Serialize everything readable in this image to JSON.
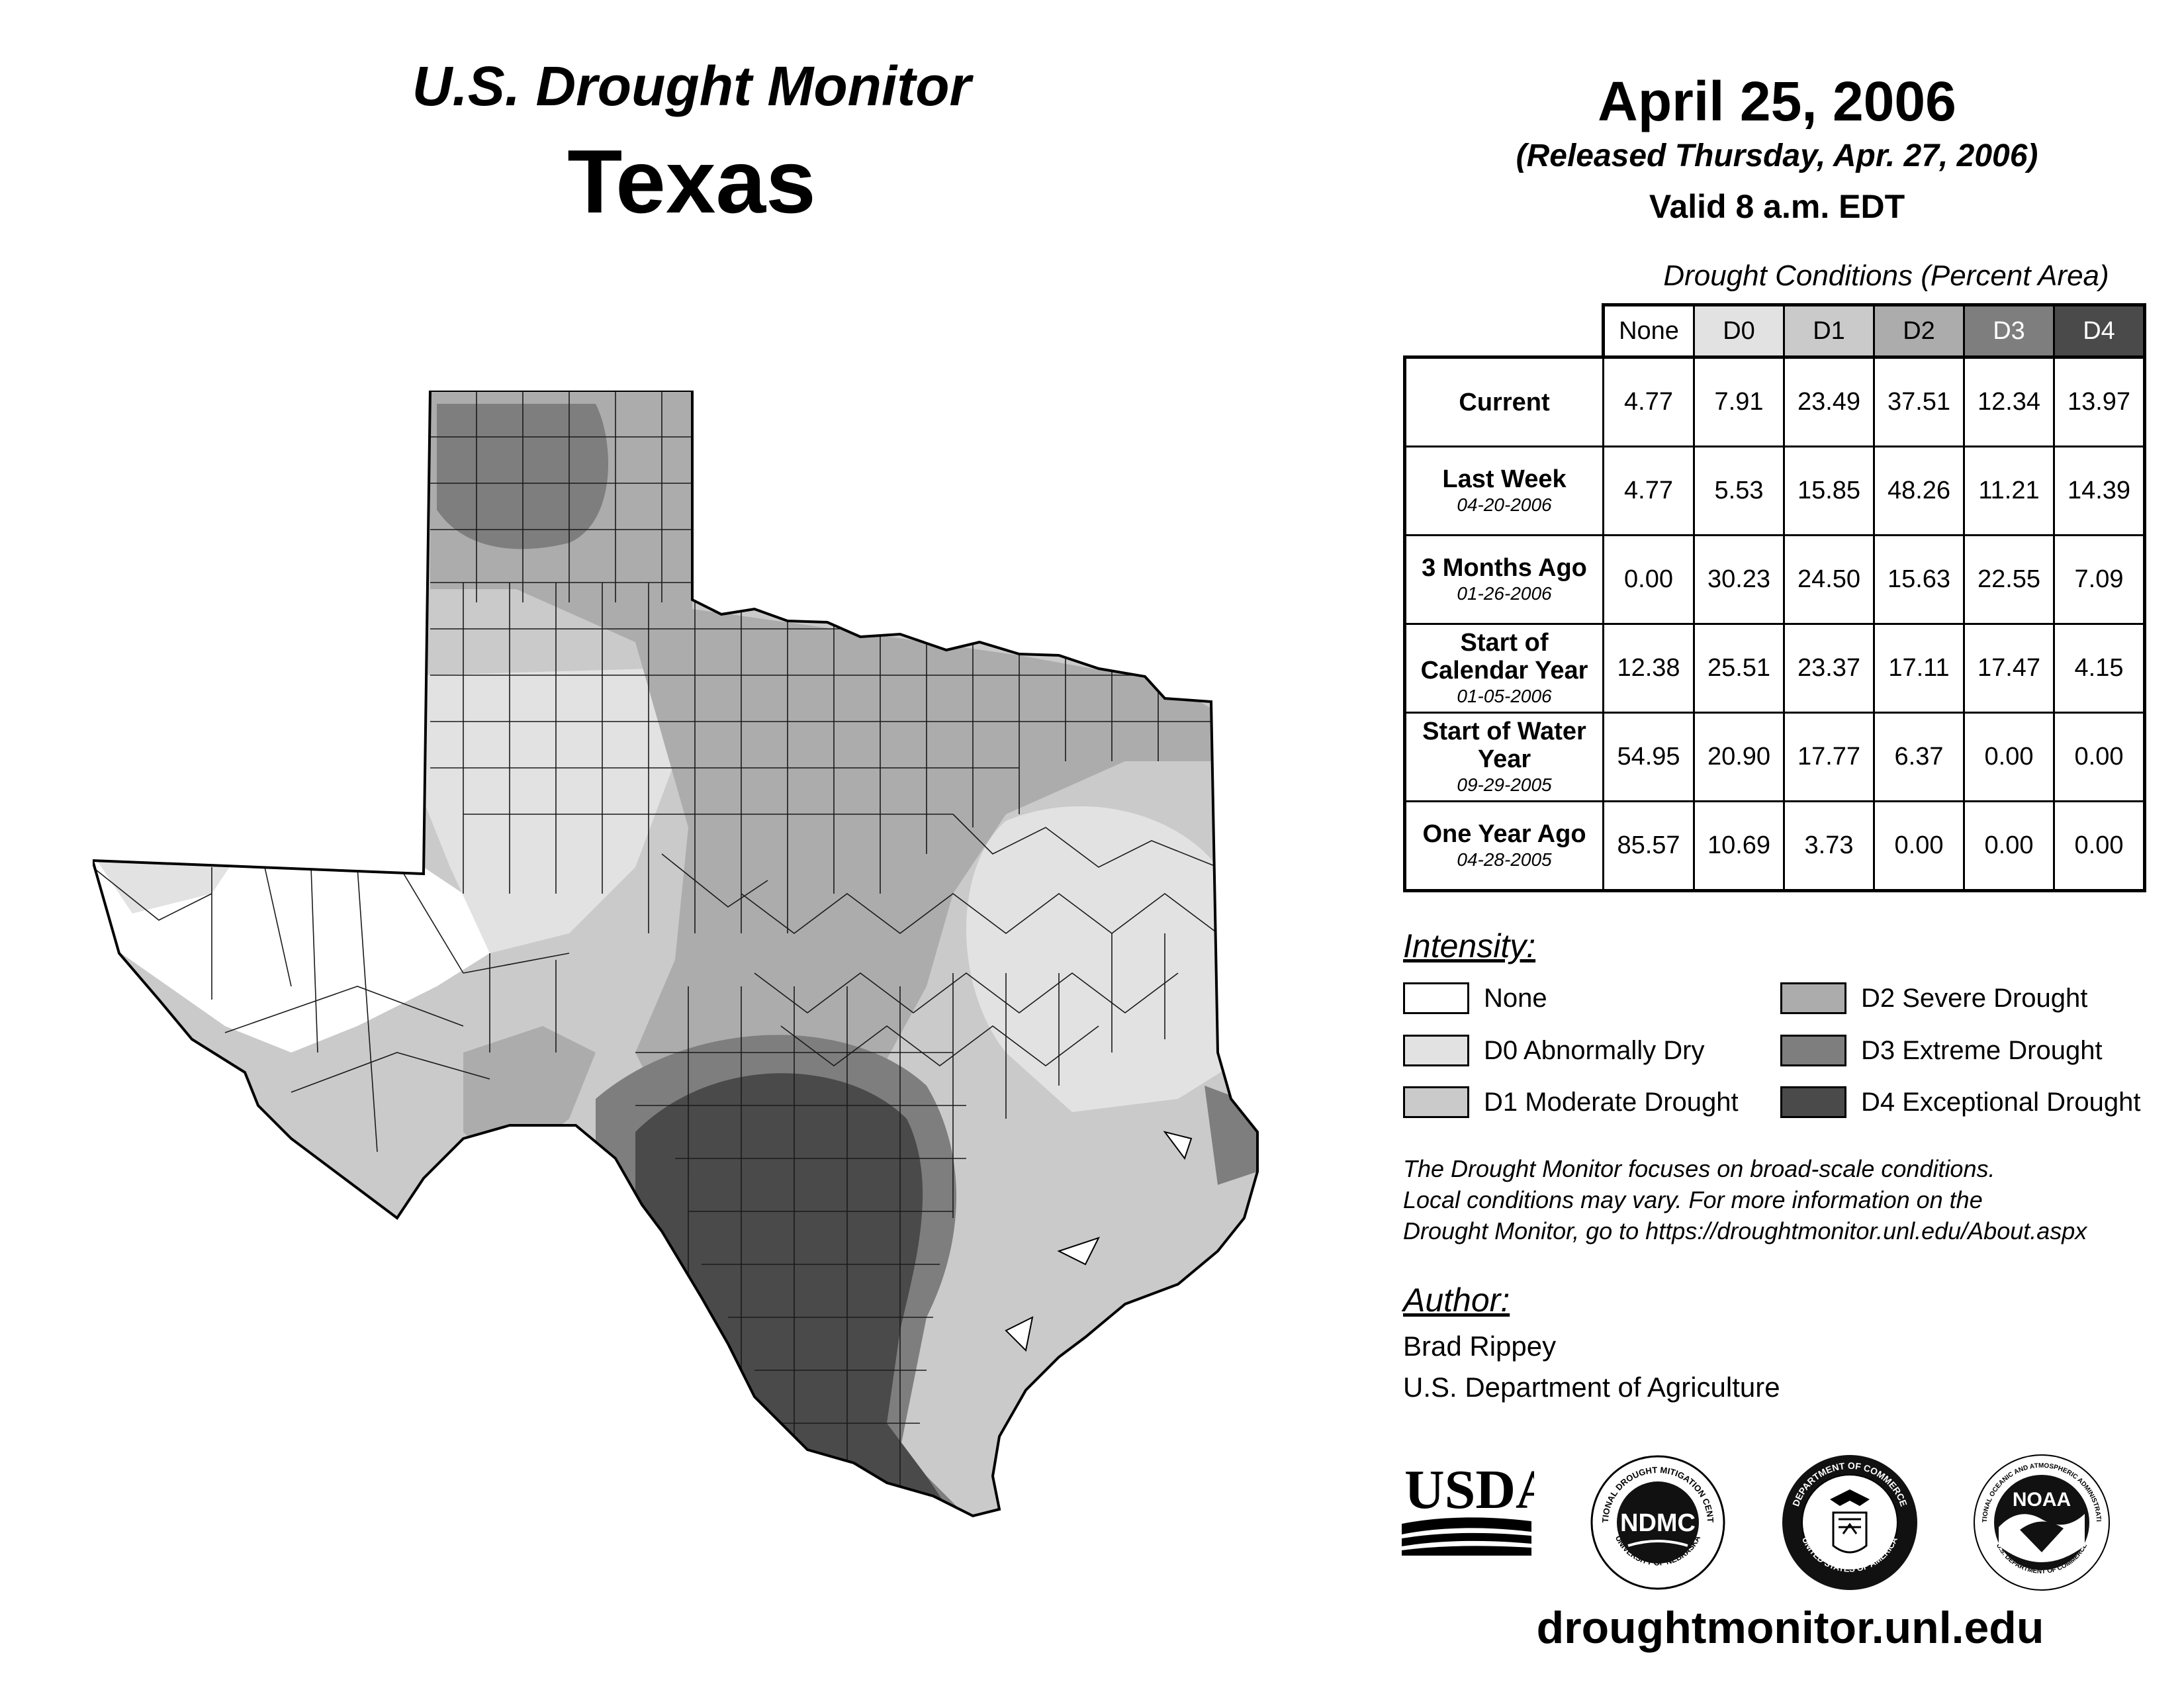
{
  "header": {
    "product": "U.S. Drought Monitor",
    "state": "Texas",
    "date": "April 25, 2006",
    "released": "(Released Thursday, Apr. 27, 2006)",
    "valid": "Valid 8 a.m. EDT"
  },
  "table": {
    "caption": "Drought Conditions (Percent Area)",
    "columns": [
      "None",
      "D0",
      "D1",
      "D2",
      "D3",
      "D4"
    ],
    "rows": [
      {
        "label": "Current",
        "date": "",
        "values": [
          "4.77",
          "7.91",
          "23.49",
          "37.51",
          "12.34",
          "13.97"
        ]
      },
      {
        "label": "Last Week",
        "date": "04-20-2006",
        "values": [
          "4.77",
          "5.53",
          "15.85",
          "48.26",
          "11.21",
          "14.39"
        ]
      },
      {
        "label": "3 Months Ago",
        "date": "01-26-2006",
        "values": [
          "0.00",
          "30.23",
          "24.50",
          "15.63",
          "22.55",
          "7.09"
        ]
      },
      {
        "label": "Start of Calendar Year",
        "date": "01-05-2006",
        "values": [
          "12.38",
          "25.51",
          "23.37",
          "17.11",
          "17.47",
          "4.15"
        ]
      },
      {
        "label": "Start of Water Year",
        "date": "09-29-2005",
        "values": [
          "54.95",
          "20.90",
          "17.77",
          "6.37",
          "0.00",
          "0.00"
        ]
      },
      {
        "label": "One Year Ago",
        "date": "04-28-2005",
        "values": [
          "85.57",
          "10.69",
          "3.73",
          "0.00",
          "0.00",
          "0.00"
        ]
      }
    ]
  },
  "legend": {
    "title": "Intensity:",
    "items": [
      {
        "label": "None",
        "color": "#ffffff"
      },
      {
        "label": "D0 Abnormally Dry",
        "color": "#e2e2e2"
      },
      {
        "label": "D1 Moderate Drought",
        "color": "#cacaca"
      },
      {
        "label": "D2 Severe Drought",
        "color": "#acacac"
      },
      {
        "label": "D3 Extreme Drought",
        "color": "#7e7e7e"
      },
      {
        "label": "D4 Exceptional Drought",
        "color": "#4a4a4a"
      }
    ]
  },
  "header_colors": [
    "#ffffff",
    "#e2e2e2",
    "#cacaca",
    "#acacac",
    "#7e7e7e",
    "#4a4a4a"
  ],
  "note": [
    "The Drought Monitor focuses on broad-scale conditions.",
    "Local conditions may vary. For more information on the",
    "Drought Monitor, go to https://droughtmonitor.unl.edu/About.aspx"
  ],
  "author": {
    "title": "Author:",
    "name": "Brad Rippey",
    "org": "U.S. Department of Agriculture"
  },
  "logos": {
    "usda": "USDA",
    "ndmc": "NDMC",
    "ndmc_ring": "NATIONAL DROUGHT MITIGATION CENTER",
    "ndmc_ring_bottom": "UNIVERSITY OF NEBRASKA",
    "doc_ring": "DEPARTMENT OF COMMERCE",
    "doc_ring_bottom": "UNITED STATES OF AMERICA",
    "noaa": "NOAA",
    "noaa_ring": "NATIONAL OCEANIC AND ATMOSPHERIC ADMINISTRATION",
    "noaa_ring_bottom": "U.S. DEPARTMENT OF COMMERCE"
  },
  "footer": {
    "url": "droughtmonitor.unl.edu"
  }
}
